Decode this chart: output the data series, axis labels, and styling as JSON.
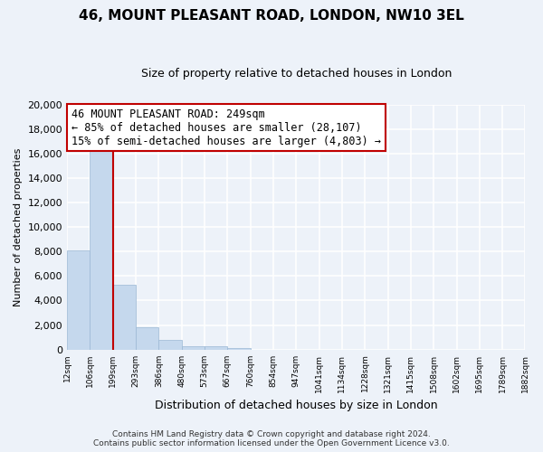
{
  "title": "46, MOUNT PLEASANT ROAD, LONDON, NW10 3EL",
  "subtitle": "Size of property relative to detached houses in London",
  "xlabel": "Distribution of detached houses by size in London",
  "ylabel": "Number of detached properties",
  "bar_values": [
    8100,
    16500,
    5300,
    1800,
    800,
    300,
    250,
    150,
    0,
    0,
    0,
    0,
    0,
    0,
    0,
    0,
    0,
    0,
    0,
    0
  ],
  "categories": [
    "12sqm",
    "106sqm",
    "199sqm",
    "293sqm",
    "386sqm",
    "480sqm",
    "573sqm",
    "667sqm",
    "760sqm",
    "854sqm",
    "947sqm",
    "1041sqm",
    "1134sqm",
    "1228sqm",
    "1321sqm",
    "1415sqm",
    "1508sqm",
    "1602sqm",
    "1695sqm",
    "1789sqm",
    "1882sqm"
  ],
  "bar_color": "#c5d8ed",
  "bar_edge_color": "#9bb8d4",
  "vline_color": "#c00000",
  "annotation_title": "46 MOUNT PLEASANT ROAD: 249sqm",
  "annotation_line1": "← 85% of detached houses are smaller (28,107)",
  "annotation_line2": "15% of semi-detached houses are larger (4,803) →",
  "annotation_box_color": "#ffffff",
  "annotation_box_edge": "#c00000",
  "ylim": [
    0,
    20000
  ],
  "yticks": [
    0,
    2000,
    4000,
    6000,
    8000,
    10000,
    12000,
    14000,
    16000,
    18000,
    20000
  ],
  "footer_line1": "Contains HM Land Registry data © Crown copyright and database right 2024.",
  "footer_line2": "Contains public sector information licensed under the Open Government Licence v3.0.",
  "bg_color": "#edf2f9",
  "plot_bg_color": "#edf2f9",
  "grid_color": "#ffffff"
}
